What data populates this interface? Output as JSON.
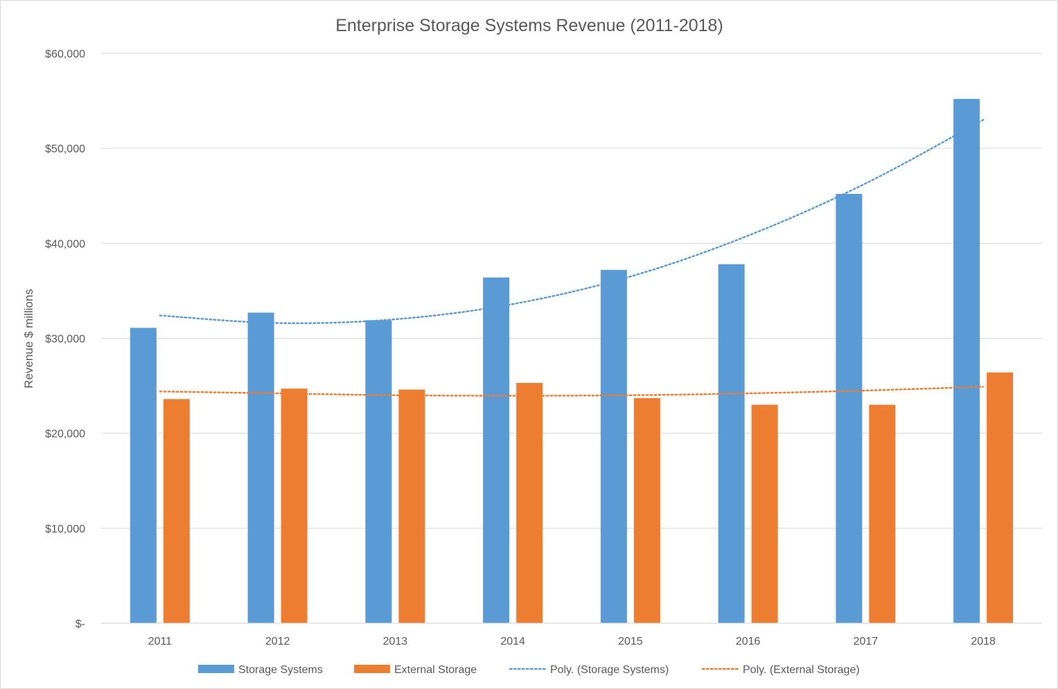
{
  "chart_data": {
    "type": "bar",
    "title": "Enterprise Storage Systems Revenue (2011-2018)",
    "xlabel": "",
    "ylabel": "Revenue $ millions",
    "ylim": [
      0,
      60000
    ],
    "y_ticks": [
      {
        "value": 0,
        "label": "$-"
      },
      {
        "value": 10000,
        "label": "$10,000"
      },
      {
        "value": 20000,
        "label": "$20,000"
      },
      {
        "value": 30000,
        "label": "$30,000"
      },
      {
        "value": 40000,
        "label": "$40,000"
      },
      {
        "value": 50000,
        "label": "$50,000"
      },
      {
        "value": 60000,
        "label": "$60,000"
      }
    ],
    "categories": [
      "2011",
      "2012",
      "2013",
      "2014",
      "2015",
      "2016",
      "2017",
      "2018"
    ],
    "series": [
      {
        "name": "Storage Systems",
        "color": "#5b9bd5",
        "values": [
          31100,
          32700,
          31900,
          36400,
          37200,
          37800,
          45200,
          55200
        ]
      },
      {
        "name": "External Storage",
        "color": "#ed7d31",
        "values": [
          23600,
          24700,
          24600,
          25300,
          23700,
          23000,
          23000,
          26400
        ]
      }
    ],
    "trendlines": [
      {
        "name": "Poly. (Storage Systems)",
        "color": "#5b9bd5",
        "style": "dotted",
        "values": [
          32400,
          31600,
          32000,
          33600,
          36500,
          40800,
          46300,
          53000
        ]
      },
      {
        "name": "Poly. (External Storage)",
        "color": "#ed7d31",
        "style": "dotted",
        "values": [
          24400,
          24200,
          24000,
          23950,
          24000,
          24200,
          24500,
          24900
        ]
      }
    ],
    "grid": true,
    "legend_position": "bottom"
  }
}
